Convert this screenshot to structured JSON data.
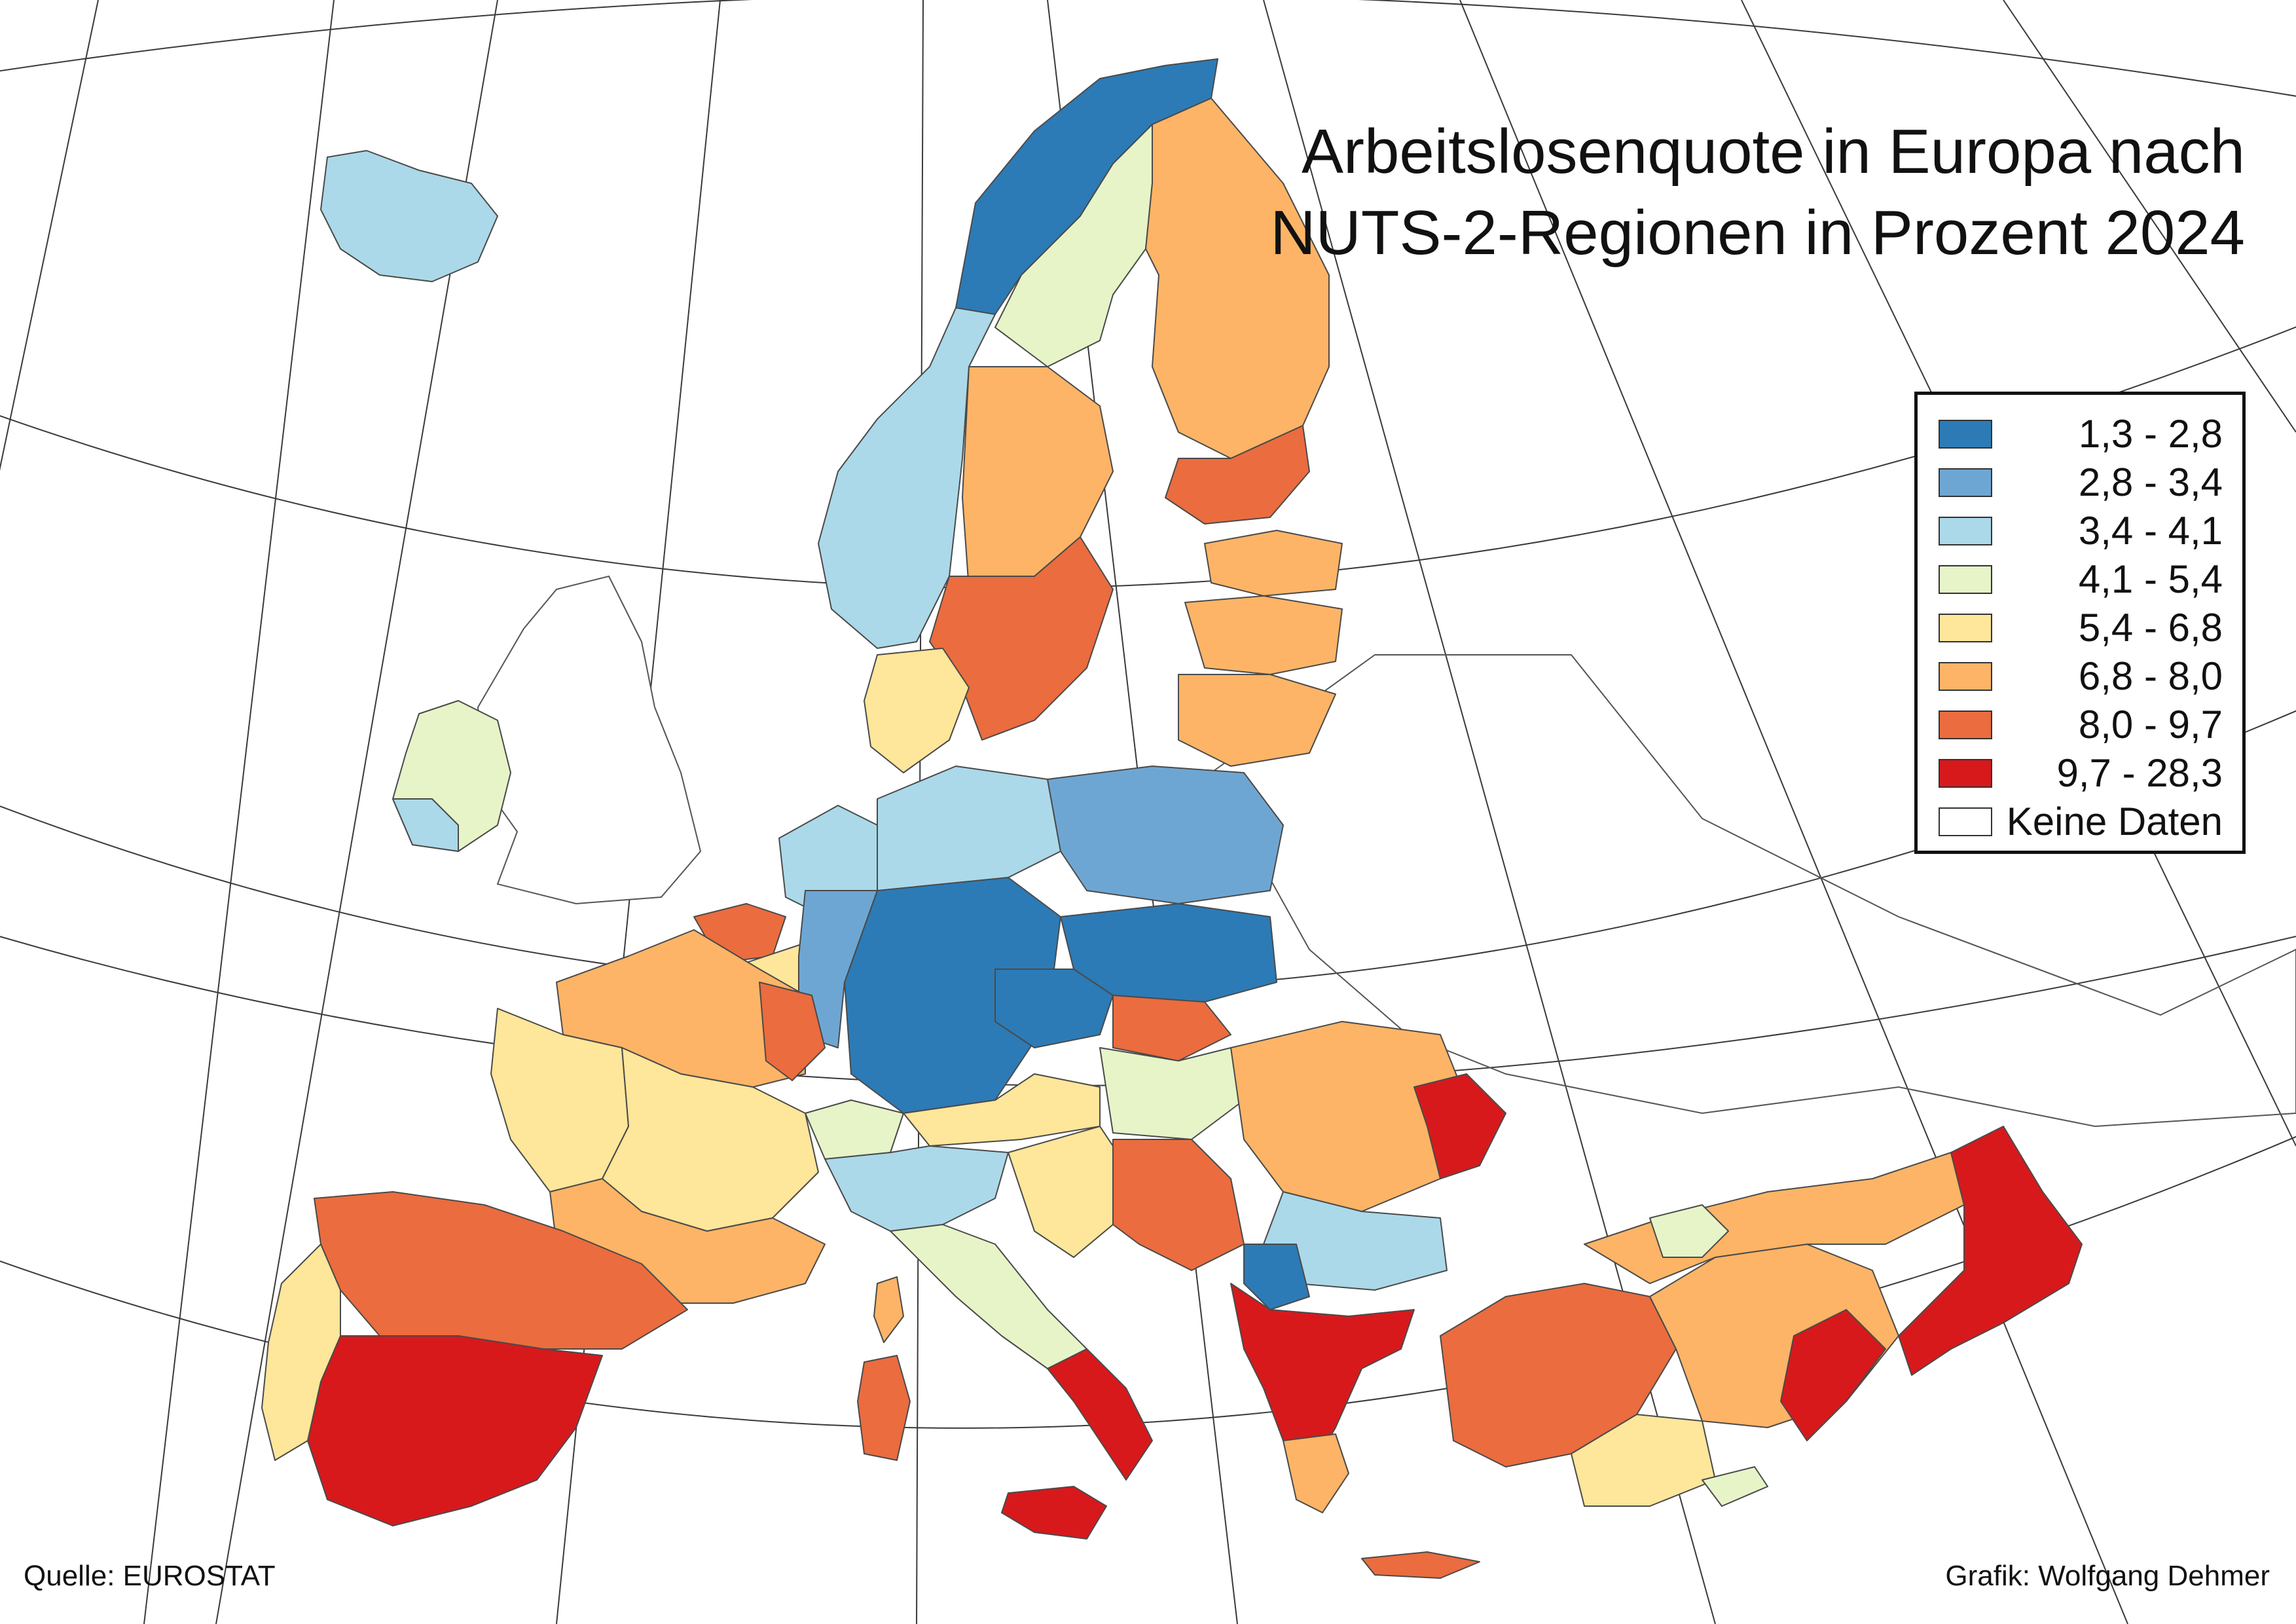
{
  "title_line1": "Arbeitslosenquote in Europa nach",
  "title_line2": "NUTS-2-Regionen in Prozent 2024",
  "legend": [
    {
      "label": "1,3 - 2,8",
      "color": "#2c7bb6"
    },
    {
      "label": "2,8 - 3,4",
      "color": "#6ea6d3"
    },
    {
      "label": "3,4 - 4,1",
      "color": "#abd9e9"
    },
    {
      "label": "4,1 - 5,4",
      "color": "#e6f4c8"
    },
    {
      "label": "5,4 - 6,8",
      "color": "#fee69a"
    },
    {
      "label": "6,8 - 8,0",
      "color": "#fdb466"
    },
    {
      "label": "8,0 - 9,7",
      "color": "#eb6c3e"
    },
    {
      "label": "9,7 - 28,3",
      "color": "#d7191c"
    },
    {
      "label": "Keine Daten",
      "color": "#ffffff"
    }
  ],
  "source": "Quelle: EUROSTAT",
  "credit": "Grafik: Wolfgang Dehmer"
}
